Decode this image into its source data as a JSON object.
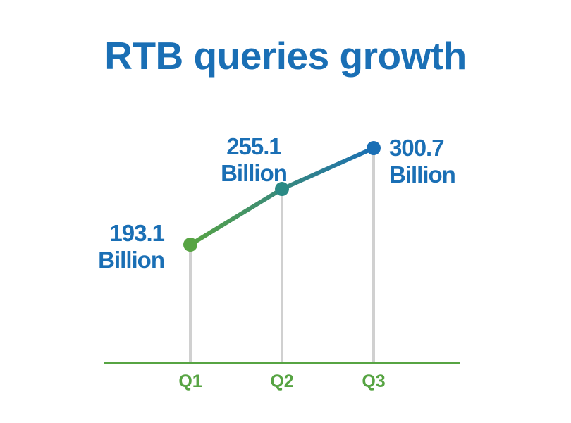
{
  "chart_data": {
    "type": "line",
    "title": "RTB queries growth",
    "categories": [
      "Q1",
      "Q2",
      "Q3"
    ],
    "values": [
      193.1,
      255.1,
      300.7
    ],
    "value_labels": [
      [
        "193.1",
        "Billion"
      ],
      [
        "255.1",
        "Billion"
      ],
      [
        "300.7",
        "Billion"
      ]
    ],
    "grid": false,
    "legend": "none"
  },
  "colors": {
    "title": "#1a6fb5",
    "value_label": "#1a6fb5",
    "tick_label": "#57a443",
    "axis": "#57a443",
    "drop_line": "#d0d0d0",
    "line_start": "#57a443",
    "line_end": "#1a6fb5",
    "point_mid": "#2b8a85"
  }
}
